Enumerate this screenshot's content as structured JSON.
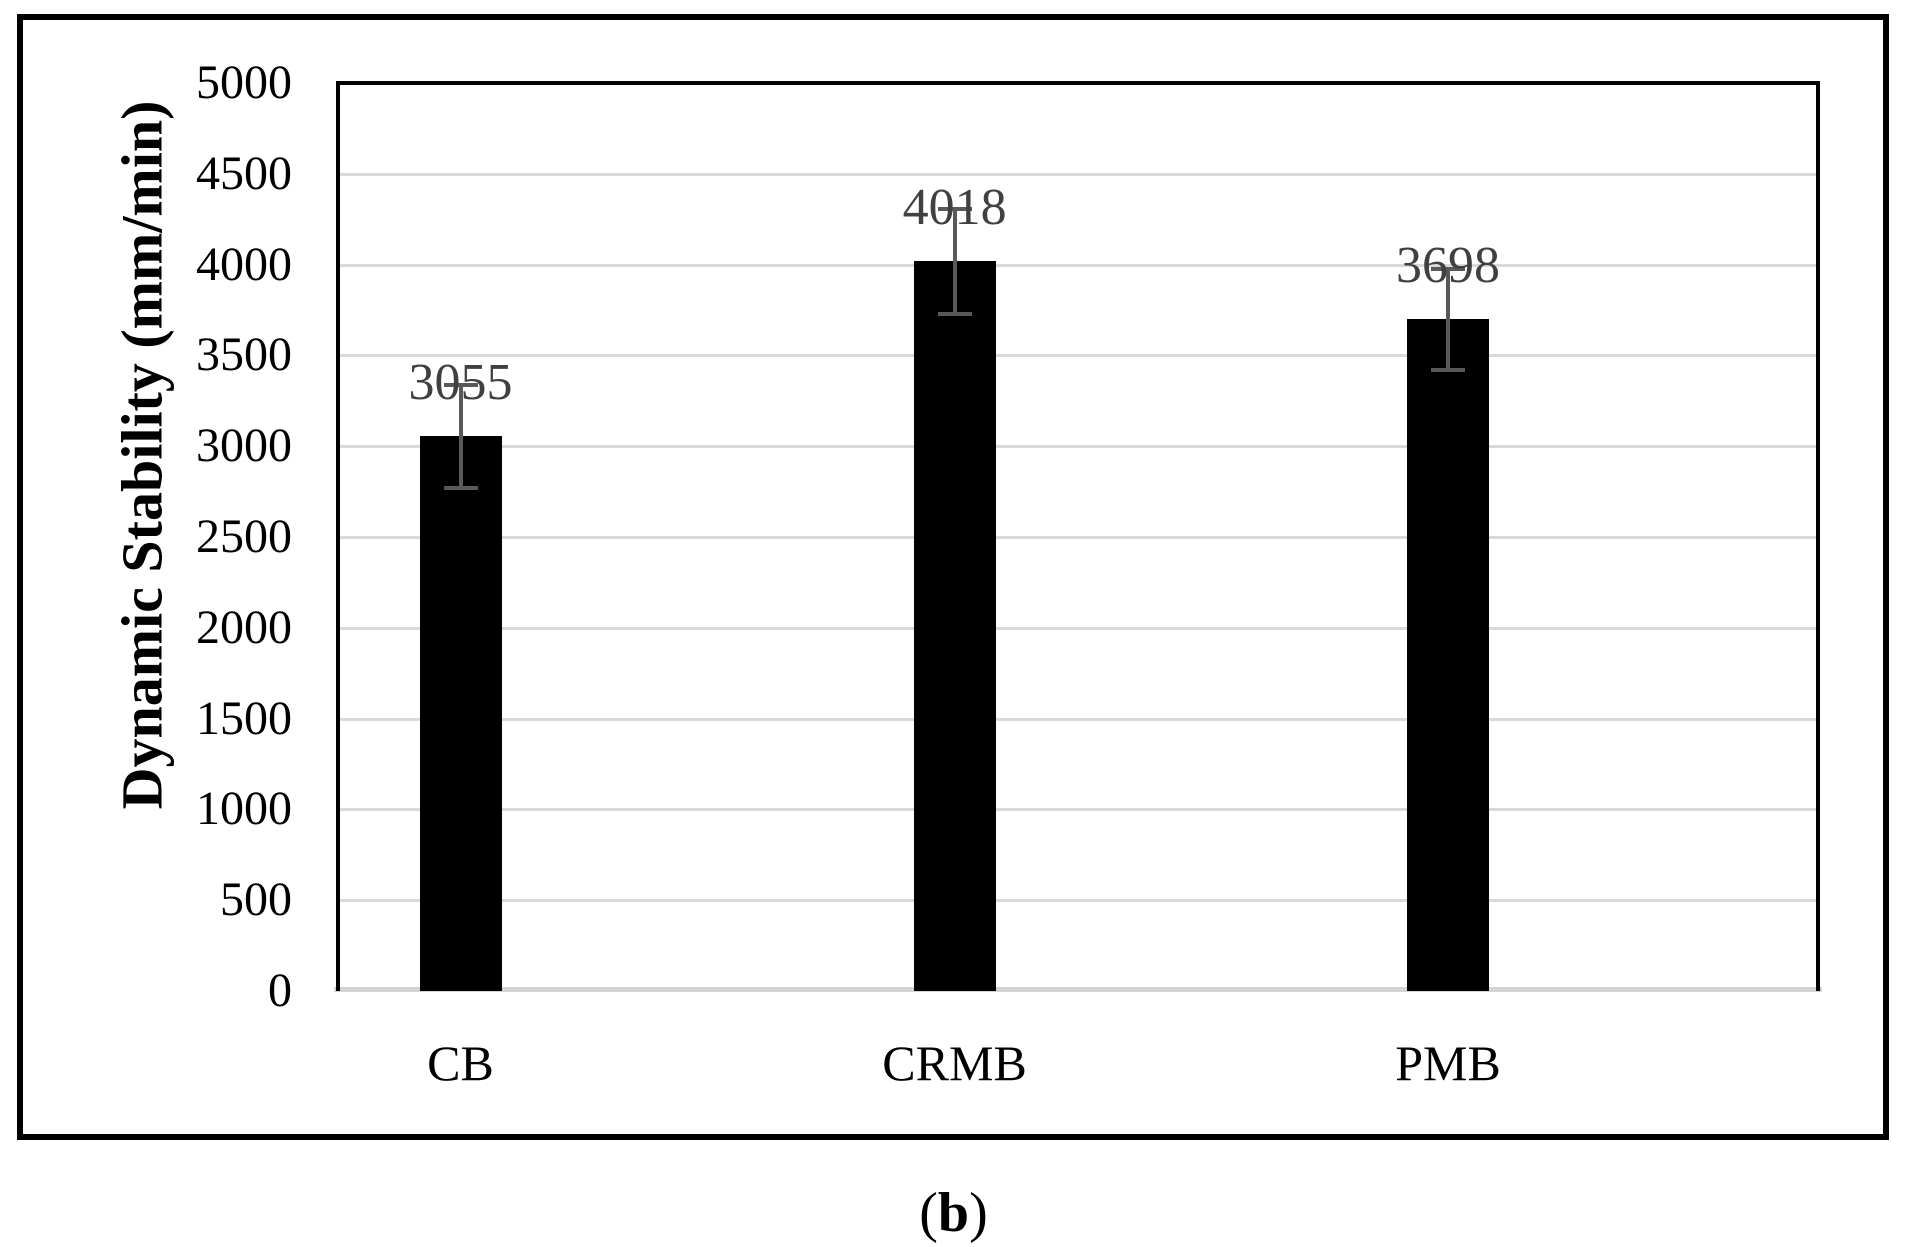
{
  "figure": {
    "caption": {
      "open": "(",
      "letter": "b",
      "close": ")"
    }
  },
  "chart_data": {
    "type": "bar",
    "title": "",
    "categories": [
      "CB",
      "CRMB",
      "PMB"
    ],
    "values": [
      3055,
      4018,
      3698
    ],
    "data_labels": [
      "3055",
      "4018",
      "3698"
    ],
    "error_bars_plus_minus": [
      283,
      290,
      278
    ],
    "xlabel": "",
    "ylabel": "Dynamic Stability (mm/min)",
    "ylim": [
      0,
      5000
    ],
    "ytick_step": 500,
    "ytick_labels": [
      "0",
      "500",
      "1000",
      "1500",
      "2000",
      "2500",
      "3000",
      "3500",
      "4000",
      "4500",
      "5000"
    ],
    "grid": "horizontal",
    "legend_position": "none",
    "colors": {
      "bar": "#000000",
      "error_bar": "#595959",
      "data_label": "#404040",
      "gridline": "#d9d9d9",
      "x_axis_line": "#d3d3d3",
      "plot_border": "#000000",
      "outer_border": "#000000",
      "text": "#000000"
    }
  }
}
